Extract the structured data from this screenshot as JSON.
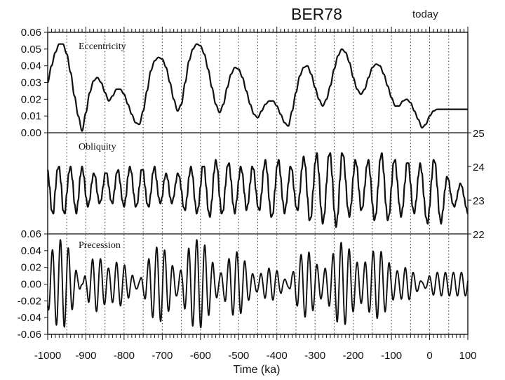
{
  "chart_data": {
    "type": "line",
    "title": "BER78",
    "annotation": "today",
    "xlabel": "Time (ka)",
    "xlim": [
      -1000,
      100
    ],
    "x_ticks": [
      "-1000",
      "-900",
      "-800",
      "-700",
      "-600",
      "-500",
      "-400",
      "-300",
      "-200",
      "-100",
      "0",
      "100"
    ],
    "grid": "dotted vertical lines every 50 ka",
    "panels": [
      {
        "name": "Eccentricity",
        "ylim": [
          0.0,
          0.06
        ],
        "y_axis_side": "left",
        "y_ticks": [
          "0.06",
          "0.05",
          "0.04",
          "0.03",
          "0.02",
          "0.01",
          "0.00"
        ],
        "x": [
          -1000,
          -990,
          -980,
          -970,
          -960,
          -950,
          -940,
          -930,
          -920,
          -910,
          -900,
          -890,
          -880,
          -870,
          -860,
          -850,
          -840,
          -830,
          -820,
          -810,
          -800,
          -790,
          -780,
          -770,
          -760,
          -750,
          -740,
          -730,
          -720,
          -710,
          -700,
          -690,
          -680,
          -670,
          -660,
          -650,
          -640,
          -630,
          -620,
          -610,
          -600,
          -590,
          -580,
          -570,
          -560,
          -550,
          -540,
          -530,
          -520,
          -510,
          -500,
          -490,
          -480,
          -470,
          -460,
          -450,
          -440,
          -430,
          -420,
          -410,
          -400,
          -390,
          -380,
          -370,
          -360,
          -350,
          -340,
          -330,
          -320,
          -310,
          -300,
          -290,
          -280,
          -270,
          -260,
          -250,
          -240,
          -230,
          -220,
          -210,
          -200,
          -190,
          -180,
          -170,
          -160,
          -150,
          -140,
          -130,
          -120,
          -110,
          -100,
          -90,
          -80,
          -70,
          -60,
          -50,
          -40,
          -30,
          -20,
          -10,
          0,
          10,
          20,
          30,
          40,
          50,
          60,
          70,
          80,
          90,
          100
        ],
        "values": [
          0.03,
          0.04,
          0.048,
          0.053,
          0.053,
          0.047,
          0.036,
          0.022,
          0.01,
          0.001,
          0.012,
          0.024,
          0.031,
          0.033,
          0.03,
          0.024,
          0.019,
          0.022,
          0.026,
          0.026,
          0.023,
          0.017,
          0.011,
          0.006,
          0.005,
          0.013,
          0.025,
          0.037,
          0.043,
          0.045,
          0.044,
          0.039,
          0.03,
          0.02,
          0.013,
          0.017,
          0.03,
          0.043,
          0.05,
          0.053,
          0.052,
          0.047,
          0.038,
          0.027,
          0.017,
          0.012,
          0.017,
          0.027,
          0.035,
          0.039,
          0.038,
          0.033,
          0.025,
          0.017,
          0.011,
          0.009,
          0.013,
          0.017,
          0.019,
          0.019,
          0.016,
          0.011,
          0.006,
          0.004,
          0.013,
          0.024,
          0.034,
          0.039,
          0.04,
          0.035,
          0.027,
          0.02,
          0.016,
          0.02,
          0.028,
          0.038,
          0.046,
          0.05,
          0.048,
          0.042,
          0.033,
          0.026,
          0.023,
          0.026,
          0.033,
          0.039,
          0.041,
          0.04,
          0.035,
          0.028,
          0.021,
          0.016,
          0.016,
          0.019,
          0.02,
          0.018,
          0.013,
          0.008,
          0.003,
          0.005,
          0.01,
          0.013,
          0.014,
          0.014,
          0.014,
          0.014,
          0.014,
          0.014,
          0.014,
          0.014,
          0.014
        ]
      },
      {
        "name": "Obliquity",
        "ylim": [
          22,
          25
        ],
        "y_axis_side": "right",
        "y_ticks": [
          "25",
          "24",
          "23",
          "22"
        ],
        "x_start": -1000,
        "x_step": 5,
        "values": [
          23.9,
          23.4,
          22.7,
          22.6,
          23.3,
          23.9,
          24.0,
          23.5,
          22.7,
          22.6,
          23.2,
          23.8,
          24.0,
          23.6,
          22.9,
          22.6,
          23.0,
          23.7,
          24.0,
          23.7,
          23.1,
          22.8,
          23.0,
          23.5,
          23.8,
          23.7,
          23.2,
          22.9,
          23.0,
          23.4,
          23.8,
          23.8,
          23.4,
          23.0,
          22.9,
          23.3,
          23.8,
          23.9,
          23.5,
          23.0,
          22.8,
          23.1,
          23.7,
          24.0,
          23.8,
          23.2,
          22.8,
          22.9,
          23.4,
          23.9,
          23.9,
          23.4,
          22.9,
          22.8,
          23.2,
          23.8,
          24.0,
          23.6,
          23.1,
          22.9,
          23.1,
          23.6,
          23.8,
          23.6,
          23.1,
          22.9,
          23.1,
          23.5,
          23.8,
          23.7,
          23.3,
          22.8,
          22.7,
          23.1,
          23.7,
          24.0,
          23.7,
          23.0,
          22.6,
          22.8,
          23.4,
          24.0,
          24.0,
          23.4,
          22.7,
          22.5,
          23.0,
          23.8,
          24.2,
          23.9,
          23.1,
          22.6,
          22.7,
          23.4,
          24.0,
          24.1,
          23.6,
          22.9,
          22.6,
          23.0,
          23.6,
          24.0,
          23.8,
          23.2,
          22.7,
          22.9,
          23.5,
          24.0,
          23.9,
          23.3,
          22.8,
          22.7,
          23.2,
          23.9,
          24.2,
          23.8,
          23.0,
          22.5,
          22.6,
          23.3,
          24.0,
          24.2,
          23.7,
          23.0,
          22.6,
          22.9,
          23.5,
          24.0,
          23.9,
          23.3,
          22.8,
          22.7,
          23.2,
          23.9,
          24.3,
          24.0,
          23.1,
          22.4,
          22.5,
          23.3,
          24.1,
          24.4,
          23.8,
          22.8,
          22.3,
          22.6,
          23.5,
          24.3,
          24.4,
          23.7,
          22.7,
          22.2,
          22.6,
          23.6,
          24.4,
          24.3,
          23.6,
          22.8,
          22.5,
          22.9,
          23.7,
          24.2,
          24.0,
          23.3,
          22.7,
          22.8,
          23.4,
          24.0,
          24.2,
          23.7,
          22.9,
          22.4,
          22.6,
          23.4,
          24.2,
          24.4,
          23.8,
          22.9,
          22.4,
          22.6,
          23.4,
          24.1,
          24.2,
          23.6,
          22.9,
          22.5,
          22.8,
          23.5,
          24.1,
          24.1,
          23.5,
          22.8,
          22.6,
          23.0,
          23.7,
          24.1,
          23.8,
          23.1,
          22.5,
          22.3,
          22.8,
          23.6,
          24.2,
          24.1,
          23.4,
          22.6,
          22.3,
          22.7,
          23.3,
          23.7,
          23.6,
          23.2,
          22.9,
          22.8,
          23.0,
          23.3,
          23.5,
          23.4,
          23.1,
          22.8,
          22.6
        ]
      },
      {
        "name": "Precession",
        "ylim": [
          -0.06,
          0.06
        ],
        "y_axis_side": "left",
        "y_ticks": [
          "0.06",
          "0.04",
          "0.02",
          "0.00",
          "-0.02",
          "-0.04",
          "-0.06"
        ],
        "period_ka": 21,
        "amplitude_follows": "Eccentricity"
      }
    ]
  }
}
